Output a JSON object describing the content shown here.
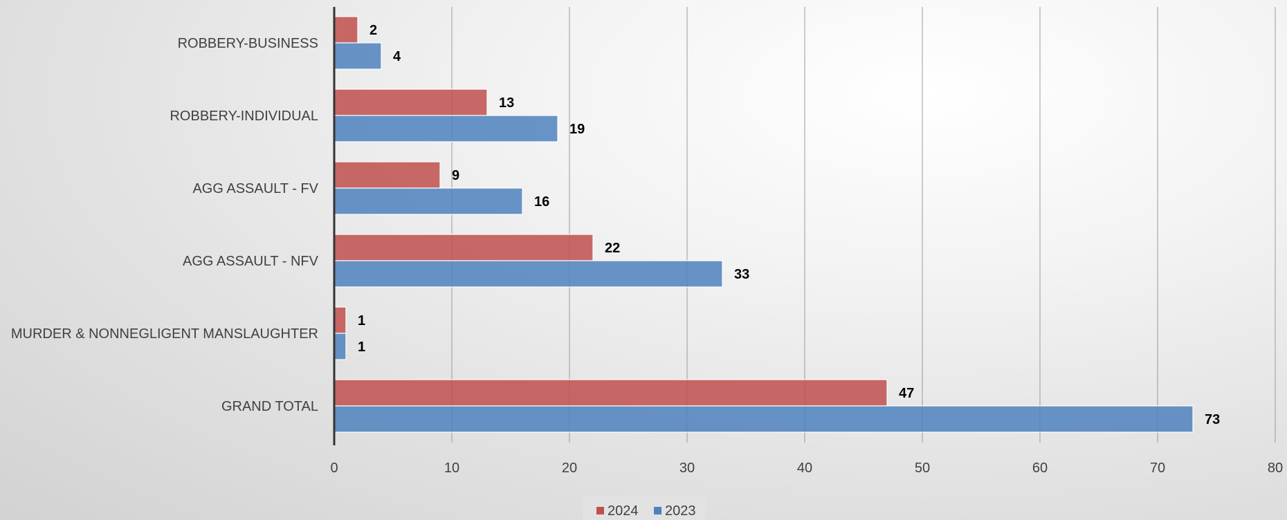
{
  "colors": {
    "series_2024": "#c0504d",
    "series_2023": "#4f81bd",
    "gridline": "#9a9a9a",
    "axis": "#333333"
  },
  "chart_data": {
    "type": "bar",
    "orientation": "horizontal",
    "categories": [
      "ROBBERY-BUSINESS",
      "ROBBERY-INDIVIDUAL",
      "AGG ASSAULT - FV",
      "AGG ASSAULT - NFV",
      "MURDER & NONNEGLIGENT MANSLAUGHTER",
      "GRAND TOTAL"
    ],
    "series": [
      {
        "name": "2024",
        "values": [
          2,
          13,
          9,
          22,
          1,
          47
        ]
      },
      {
        "name": "2023",
        "values": [
          4,
          19,
          16,
          33,
          1,
          73
        ]
      }
    ],
    "xlim": [
      0,
      80
    ],
    "xticks": [
      0,
      10,
      20,
      30,
      40,
      50,
      60,
      70,
      80
    ],
    "title": "",
    "xlabel": "",
    "ylabel": "",
    "grid": "vertical gridlines on",
    "legend_position": "bottom-center",
    "data_labels": true
  }
}
